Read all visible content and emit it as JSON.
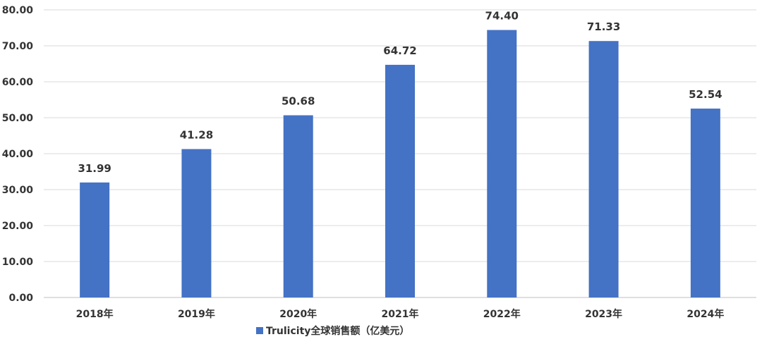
{
  "chart_data": {
    "type": "bar",
    "categories": [
      "2018年",
      "2019年",
      "2020年",
      "2021年",
      "2022年",
      "2023年",
      "2024年"
    ],
    "series": [
      {
        "name": "Trulicity全球销售额（亿美元）",
        "values": [
          31.99,
          41.28,
          50.68,
          64.72,
          74.4,
          71.33,
          52.54
        ],
        "labels": [
          "31.99",
          "41.28",
          "50.68",
          "64.72",
          "74.40",
          "71.33",
          "52.54"
        ]
      }
    ],
    "yticks": [
      "0.00",
      "10.00",
      "20.00",
      "30.00",
      "40.00",
      "50.00",
      "60.00",
      "70.00",
      "80.00"
    ],
    "ylim": [
      0,
      80
    ],
    "grid": true,
    "legend_position": "bottom",
    "colors": {
      "bar": "#4472C4",
      "grid": "#D9D9D9",
      "axis": "#BFBFBF",
      "text": "#333333"
    }
  }
}
